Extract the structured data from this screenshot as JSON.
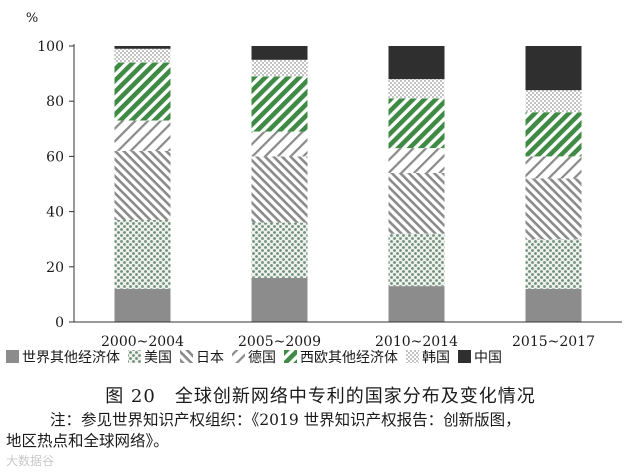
{
  "chart_data": {
    "type": "bar",
    "stacked": true,
    "ylabel": "%",
    "ylim": [
      0,
      100
    ],
    "yticks": [
      0,
      20,
      40,
      60,
      80,
      100
    ],
    "categories": [
      "2000~2004",
      "2005~2009",
      "2010~2014",
      "2015~2017"
    ],
    "series": [
      {
        "name": "世界其他经济体",
        "pattern": "solid-gray",
        "values": [
          12,
          16,
          13,
          12
        ]
      },
      {
        "name": "美国",
        "pattern": "dots",
        "values": [
          25,
          20,
          19,
          18
        ]
      },
      {
        "name": "日本",
        "pattern": "diagonal-dense",
        "values": [
          25,
          24,
          22,
          22
        ]
      },
      {
        "name": "德国",
        "pattern": "diagonal-wide",
        "values": [
          11,
          9,
          9,
          8
        ]
      },
      {
        "name": "西欧其他经济体",
        "pattern": "diagonal-green",
        "values": [
          21,
          20,
          18,
          16
        ]
      },
      {
        "name": "韩国",
        "pattern": "fine-dots",
        "values": [
          5,
          6,
          7,
          8
        ]
      },
      {
        "name": "中国",
        "pattern": "solid-dark",
        "values": [
          1,
          5,
          12,
          16
        ]
      }
    ]
  },
  "caption": "图 20　全球创新网络中专利的国家分布及变化情况",
  "note_line1": "注：参见世界知识产权组织：《2019 世界知识产权报告：创新版图，",
  "note_line2": "地区热点和全球网络》。",
  "watermark": "大数据谷"
}
